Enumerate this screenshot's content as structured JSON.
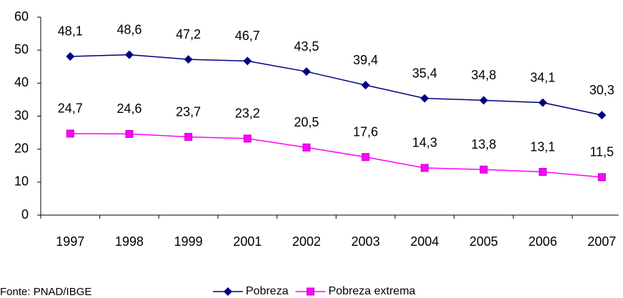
{
  "chart_data": {
    "type": "line",
    "categories": [
      "1997",
      "1998",
      "1999",
      "2001",
      "2002",
      "2003",
      "2004",
      "2005",
      "2006",
      "2007"
    ],
    "series": [
      {
        "name": "Pobreza",
        "color": "#000080",
        "marker": "diamond",
        "values": [
          48.1,
          48.6,
          47.2,
          46.7,
          43.5,
          39.4,
          35.4,
          34.8,
          34.1,
          30.3
        ],
        "value_labels": [
          "48,1",
          "48,6",
          "47,2",
          "46,7",
          "43,5",
          "39,4",
          "35,4",
          "34,8",
          "34,1",
          "30,3"
        ]
      },
      {
        "name": "Pobreza extrema",
        "color": "#ff00ff",
        "marker": "square",
        "values": [
          24.7,
          24.6,
          23.7,
          23.2,
          20.5,
          17.6,
          14.3,
          13.8,
          13.1,
          11.5
        ],
        "value_labels": [
          "24,7",
          "24,6",
          "23,7",
          "23,2",
          "20,5",
          "17,6",
          "14,3",
          "13,8",
          "13,1",
          "11,5"
        ]
      }
    ],
    "ylim": [
      0,
      60
    ],
    "yticks": [
      0,
      10,
      20,
      30,
      40,
      50,
      60
    ],
    "grid": false,
    "legend": "bottom",
    "source": "Fonte: PNAD/IBGE"
  }
}
